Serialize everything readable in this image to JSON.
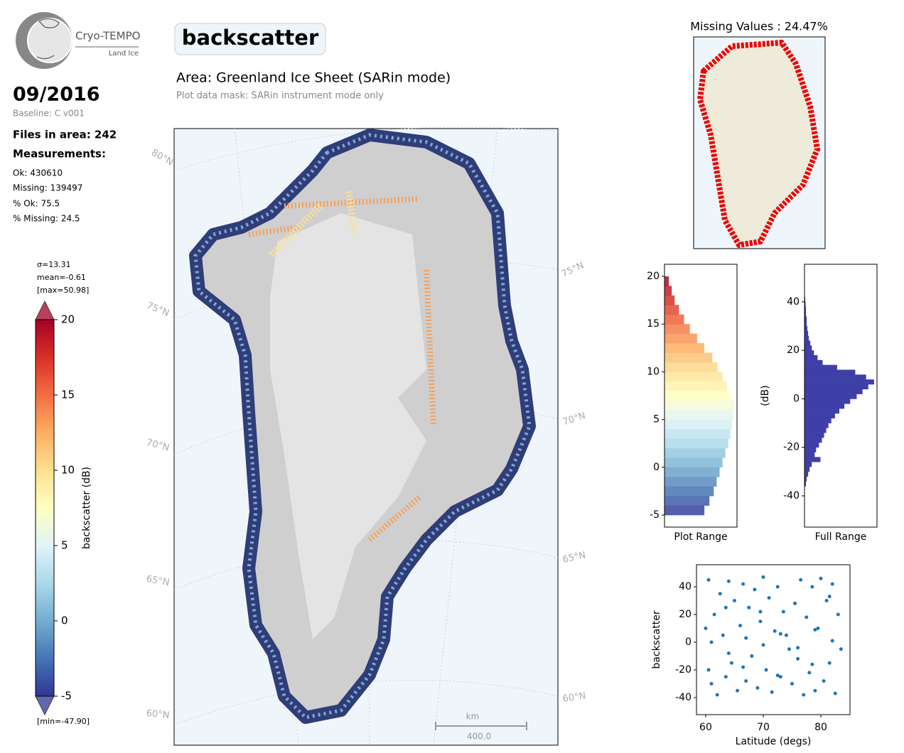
{
  "header": {
    "logo_title": "Cryo-TEMPO",
    "logo_subtitle": "Land Ice",
    "title": "backscatter",
    "date": "09/2016",
    "baseline": "Baseline: C v001",
    "files": "Files in area: 242",
    "measurements": "Measurements:",
    "stats": [
      "Ok: 430610",
      "Missing: 139497",
      "% Ok: 75.5",
      "% Missing: 24.5"
    ],
    "area": "Area: Greenland Ice Sheet (SARin mode)",
    "mask": "Plot data mask: SARin instrument mode only"
  },
  "colorbar": {
    "label": "backscatter (dB)",
    "stats": [
      "σ=13.31",
      "mean=-0.61",
      "[max=50.98]"
    ],
    "min_label": "[min=-47.90]",
    "ylim": [
      -5,
      20
    ],
    "yticks": [
      -5,
      0,
      5,
      10,
      15,
      20
    ],
    "colors": [
      "#313695",
      "#4575b4",
      "#74add1",
      "#abd9e9",
      "#e0f3f8",
      "#ffffbf",
      "#fee090",
      "#fdae61",
      "#f46d43",
      "#d73027",
      "#a50026"
    ]
  },
  "map": {
    "lat_labels_left": [
      "80°N",
      "75°N",
      "70°N",
      "65°N",
      "60°N"
    ],
    "lat_labels_right": [
      "75°N",
      "70°N",
      "65°N",
      "60°N"
    ],
    "scale_unit": "km",
    "scale_length": "400.0",
    "missing_title": "Missing Values : 24.47%"
  },
  "chart_data": [
    {
      "type": "histogram",
      "orientation": "horizontal",
      "xlabel": "Plot Range",
      "colormap": true,
      "bins": [
        -5,
        -4,
        -3,
        -2,
        -1,
        0,
        1,
        2,
        3,
        4,
        5,
        6,
        7,
        8,
        9,
        10,
        11,
        12,
        13,
        14,
        15,
        16,
        17,
        18,
        19,
        20
      ],
      "values": [
        55,
        62,
        68,
        72,
        76,
        80,
        84,
        88,
        91,
        93,
        95,
        96,
        92,
        86,
        80,
        73,
        66,
        55,
        45,
        35,
        27,
        20,
        14,
        10,
        6
      ],
      "xlim": [
        0,
        100
      ],
      "ylim": [
        -6.26,
        21.26
      ],
      "yticks": [
        -5,
        0,
        5,
        10,
        15,
        20
      ]
    },
    {
      "type": "histogram",
      "orientation": "horizontal",
      "xlabel": "Full Range",
      "ylabel": "(dB)",
      "color": "#3f3fa8",
      "bins": [
        -36,
        -34,
        -32,
        -30,
        -28,
        -26,
        -24,
        -22,
        -20,
        -18,
        -16,
        -14,
        -12,
        -10,
        -8,
        -6,
        -4,
        -2,
        0,
        2,
        4,
        6,
        8,
        10,
        12,
        14,
        16,
        18,
        20,
        22,
        24,
        26,
        28,
        30,
        32,
        34,
        36,
        38,
        40,
        42,
        44
      ],
      "values": [
        2,
        3,
        5,
        7,
        10,
        22,
        14,
        16,
        20,
        24,
        27,
        30,
        33,
        37,
        42,
        48,
        55,
        63,
        72,
        80,
        88,
        96,
        85,
        70,
        45,
        25,
        18,
        13,
        10,
        8,
        6,
        5,
        4,
        3,
        3,
        2,
        2,
        1.5,
        1,
        0.5
      ],
      "xlim": [
        0,
        100
      ],
      "ylim": [
        -52.9,
        55.5
      ],
      "yticks": [
        -40,
        -20,
        0,
        20,
        40
      ]
    },
    {
      "type": "scatter",
      "xlabel": "Latitude (degs)",
      "ylabel": "backscatter",
      "color": "#1f77b4",
      "x": [
        60,
        60.5,
        61,
        61.5,
        62,
        62.5,
        63,
        63.5,
        64,
        64.5,
        65,
        65.5,
        66,
        66.5,
        67,
        67.5,
        68,
        68.5,
        69,
        69.5,
        70,
        70.5,
        71,
        71.5,
        72,
        72.5,
        73,
        73.5,
        74,
        74.5,
        75,
        75.5,
        76,
        76.5,
        77,
        77.5,
        78,
        78.5,
        79,
        79.5,
        80,
        80.5,
        81,
        81.5,
        82,
        82.5,
        83,
        83.5,
        61,
        64,
        67,
        70,
        73,
        76,
        79,
        82,
        60.5,
        63.5,
        66.5,
        69.5,
        72.5,
        75.5,
        78.5,
        81.5
      ],
      "y": [
        10,
        45,
        -30,
        20,
        -38,
        35,
        5,
        -25,
        44,
        -15,
        30,
        -35,
        12,
        42,
        -28,
        25,
        -10,
        38,
        -33,
        15,
        47,
        -20,
        32,
        -36,
        8,
        40,
        -25,
        22,
        5,
        -5,
        -30,
        28,
        -12,
        45,
        -38,
        18,
        -22,
        40,
        -35,
        10,
        46,
        -28,
        30,
        -15,
        42,
        -37,
        20,
        -5,
        0,
        -8,
        3,
        -2,
        6,
        -4,
        9,
        1,
        -20,
        25,
        -18,
        22,
        -24,
        28,
        -16,
        33
      ],
      "xlim": [
        58.4,
        85.06
      ],
      "ylim": [
        -52.3,
        55.9
      ],
      "xticks": [
        60,
        70,
        80
      ],
      "yticks": [
        -40,
        -20,
        0,
        20,
        40
      ]
    }
  ]
}
